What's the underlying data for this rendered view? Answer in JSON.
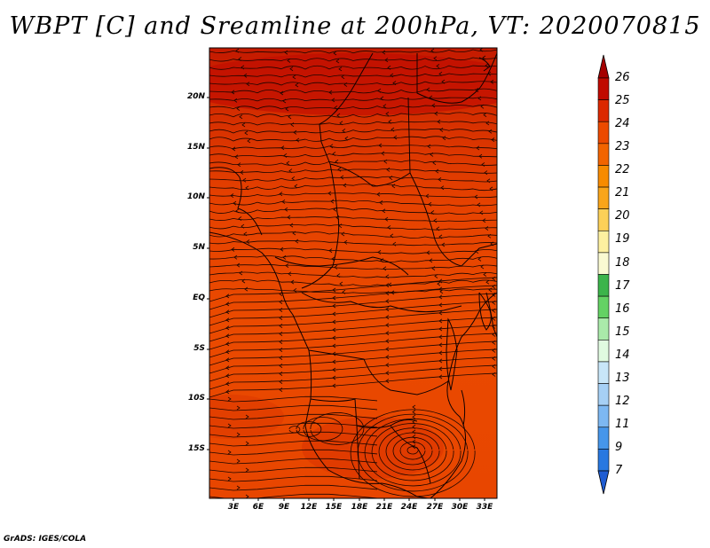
{
  "title": "WBPT [C] and Sreamline at 200hPa, VT: 2020070815",
  "credit": "GrADS: IGES/COLA",
  "map": {
    "lat_labels": [
      "20N",
      "15N",
      "10N",
      "5N",
      "EQ",
      "5S",
      "10S",
      "15S"
    ],
    "lon_labels": [
      "3E",
      "6E",
      "9E",
      "12E",
      "15E",
      "18E",
      "21E",
      "24E",
      "27E",
      "30E",
      "33E"
    ]
  },
  "colorbar": {
    "labels": [
      "26",
      "25",
      "24",
      "23",
      "22",
      "21",
      "20",
      "19",
      "18",
      "17",
      "16",
      "15",
      "14",
      "13",
      "12",
      "11",
      "9",
      "7"
    ],
    "colors": [
      "#a50000",
      "#c00a00",
      "#dc2800",
      "#ec4a00",
      "#f26400",
      "#f78b00",
      "#f9a51a",
      "#fcd058",
      "#fdf0a0",
      "#fafad2",
      "#3cb44b",
      "#64d264",
      "#aaeaaa",
      "#e0fae0",
      "#c8e6f8",
      "#a6d0f5",
      "#7db8f2",
      "#4696ea",
      "#2878e0",
      "#1e5cd2"
    ]
  }
}
